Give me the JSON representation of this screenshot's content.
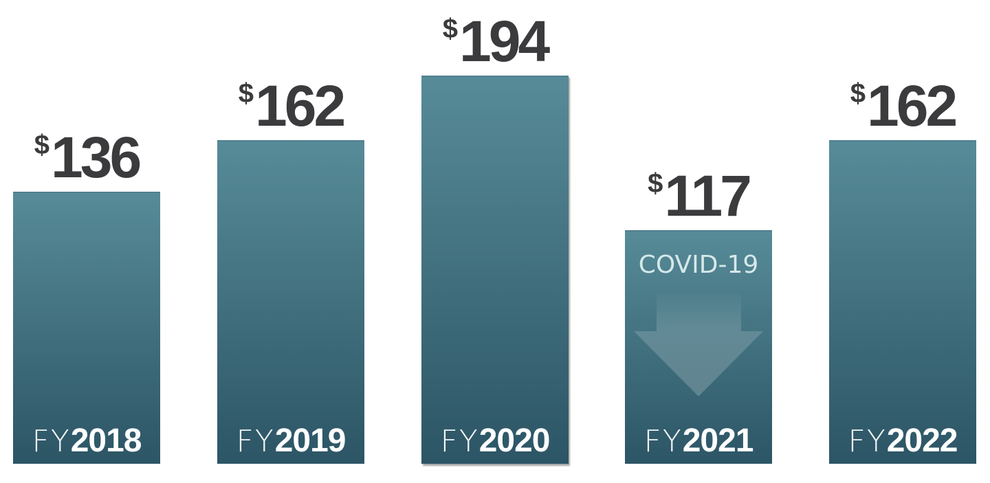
{
  "chart_data": {
    "type": "bar",
    "categories": [
      {
        "prefix": "FY",
        "year": "2018"
      },
      {
        "prefix": "FY",
        "year": "2019"
      },
      {
        "prefix": "FY",
        "year": "2020"
      },
      {
        "prefix": "FY",
        "year": "2021"
      },
      {
        "prefix": "FY",
        "year": "2022"
      }
    ],
    "values": [
      136,
      162,
      194,
      117,
      162
    ],
    "value_labels": [
      {
        "currency": "$",
        "number": "136"
      },
      {
        "currency": "$",
        "number": "162"
      },
      {
        "currency": "$",
        "number": "194"
      },
      {
        "currency": "$",
        "number": "117"
      },
      {
        "currency": "$",
        "number": "162"
      }
    ],
    "ylim": [
      0,
      200
    ],
    "grid": false,
    "axes_visible": false,
    "annotations": [
      {
        "category_index": 3,
        "text": "COVID-19",
        "icon": "down-arrow-icon"
      }
    ],
    "colors": {
      "bar_top": "#578b98",
      "bar_bottom": "#2c5565",
      "label": "#3b3b3d",
      "annotation_text": "#d6e8ea"
    }
  }
}
